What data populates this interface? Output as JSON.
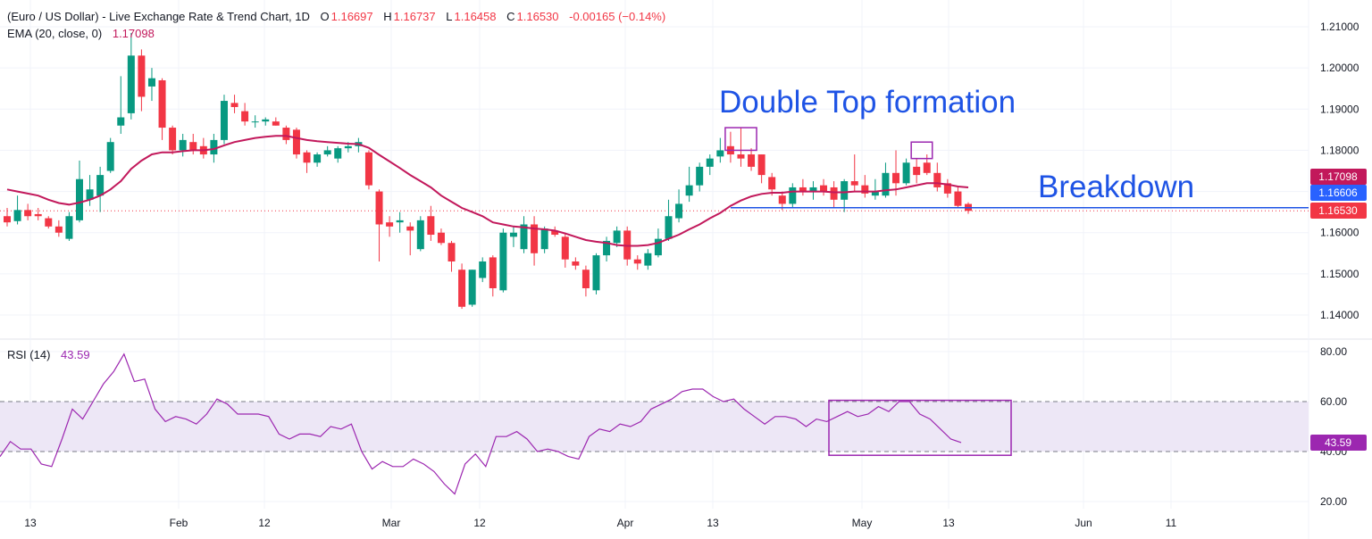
{
  "header": {
    "title": "(Euro / US Dollar) - Live Exchange Rate & Trend Chart, 1D",
    "o_label": "O",
    "o_value": "1.16697",
    "h_label": "H",
    "h_value": "1.16737",
    "l_label": "L",
    "l_value": "1.16458",
    "c_label": "C",
    "c_value": "1.16530",
    "change": "-0.00165 (−0.14%)"
  },
  "ema_legend": {
    "label": "EMA (20, close, 0)",
    "value": "1.17098"
  },
  "rsi_legend": {
    "label": "RSI (14)",
    "value": "43.59"
  },
  "annotations": {
    "double_top": "Double Top formation",
    "breakdown": "Breakdown"
  },
  "price_axis": {
    "ticks": [
      "1.21000",
      "1.20000",
      "1.19000",
      "1.18000",
      "1.17000",
      "1.16000",
      "1.15000",
      "1.14000"
    ],
    "tag_ema": "1.17098",
    "tag_level": "1.16606",
    "tag_close": "1.16530"
  },
  "rsi_axis": {
    "ticks": [
      "80.00",
      "60.00",
      "40.00",
      "20.00"
    ],
    "tag_rsi": "43.59"
  },
  "time_axis": {
    "labels": [
      "13",
      "Feb",
      "12",
      "Mar",
      "12",
      "Apr",
      "13",
      "May",
      "13",
      "Jun",
      "11"
    ]
  },
  "colors": {
    "up": "#089981",
    "down": "#f23645",
    "ema": "#c2185b",
    "rsi": "#9c27b0",
    "breakdown_line": "#1e53e5",
    "box": "#9c27b0",
    "rsi_band": "#ede7f6"
  },
  "chart_data": [
    {
      "type": "candlestick",
      "title": "(Euro / US Dollar) - Live Exchange Rate & Trend Chart, 1D",
      "ylim": [
        1.135,
        1.213
      ],
      "support_level": 1.16606,
      "candles": [
        {
          "o": 1.164,
          "h": 1.166,
          "l": 1.1615,
          "c": 1.1625
        },
        {
          "o": 1.1628,
          "h": 1.169,
          "l": 1.162,
          "c": 1.1655
        },
        {
          "o": 1.1655,
          "h": 1.167,
          "l": 1.163,
          "c": 1.164
        },
        {
          "o": 1.1645,
          "h": 1.166,
          "l": 1.163,
          "c": 1.164
        },
        {
          "o": 1.1635,
          "h": 1.164,
          "l": 1.161,
          "c": 1.1615
        },
        {
          "o": 1.1615,
          "h": 1.163,
          "l": 1.159,
          "c": 1.16
        },
        {
          "o": 1.1585,
          "h": 1.165,
          "l": 1.158,
          "c": 1.164
        },
        {
          "o": 1.163,
          "h": 1.1775,
          "l": 1.1625,
          "c": 1.173
        },
        {
          "o": 1.168,
          "h": 1.174,
          "l": 1.1665,
          "c": 1.1705
        },
        {
          "o": 1.169,
          "h": 1.176,
          "l": 1.165,
          "c": 1.174
        },
        {
          "o": 1.175,
          "h": 1.183,
          "l": 1.1745,
          "c": 1.182
        },
        {
          "o": 1.186,
          "h": 1.198,
          "l": 1.184,
          "c": 1.188
        },
        {
          "o": 1.189,
          "h": 1.2085,
          "l": 1.1875,
          "c": 1.203
        },
        {
          "o": 1.203,
          "h": 1.2045,
          "l": 1.1895,
          "c": 1.193
        },
        {
          "o": 1.1955,
          "h": 1.2,
          "l": 1.192,
          "c": 1.1975
        },
        {
          "o": 1.197,
          "h": 1.1975,
          "l": 1.1825,
          "c": 1.1855
        },
        {
          "o": 1.1855,
          "h": 1.186,
          "l": 1.179,
          "c": 1.18
        },
        {
          "o": 1.18,
          "h": 1.184,
          "l": 1.1785,
          "c": 1.1825
        },
        {
          "o": 1.182,
          "h": 1.184,
          "l": 1.179,
          "c": 1.18
        },
        {
          "o": 1.181,
          "h": 1.183,
          "l": 1.178,
          "c": 1.179
        },
        {
          "o": 1.179,
          "h": 1.184,
          "l": 1.177,
          "c": 1.1825
        },
        {
          "o": 1.1825,
          "h": 1.1935,
          "l": 1.1815,
          "c": 1.192
        },
        {
          "o": 1.1915,
          "h": 1.1935,
          "l": 1.189,
          "c": 1.1905
        },
        {
          "o": 1.1895,
          "h": 1.1915,
          "l": 1.186,
          "c": 1.187
        },
        {
          "o": 1.187,
          "h": 1.1885,
          "l": 1.1855,
          "c": 1.187
        },
        {
          "o": 1.187,
          "h": 1.188,
          "l": 1.186,
          "c": 1.1875
        },
        {
          "o": 1.187,
          "h": 1.188,
          "l": 1.186,
          "c": 1.186
        },
        {
          "o": 1.1855,
          "h": 1.186,
          "l": 1.1815,
          "c": 1.1825
        },
        {
          "o": 1.185,
          "h": 1.1855,
          "l": 1.178,
          "c": 1.179
        },
        {
          "o": 1.1795,
          "h": 1.18,
          "l": 1.1745,
          "c": 1.177
        },
        {
          "o": 1.177,
          "h": 1.1795,
          "l": 1.176,
          "c": 1.179
        },
        {
          "o": 1.179,
          "h": 1.181,
          "l": 1.1785,
          "c": 1.18
        },
        {
          "o": 1.178,
          "h": 1.181,
          "l": 1.177,
          "c": 1.1805
        },
        {
          "o": 1.1805,
          "h": 1.182,
          "l": 1.1795,
          "c": 1.181
        },
        {
          "o": 1.181,
          "h": 1.183,
          "l": 1.1795,
          "c": 1.182
        },
        {
          "o": 1.1795,
          "h": 1.18,
          "l": 1.1705,
          "c": 1.1715
        },
        {
          "o": 1.17,
          "h": 1.1705,
          "l": 1.153,
          "c": 1.162
        },
        {
          "o": 1.1625,
          "h": 1.164,
          "l": 1.159,
          "c": 1.1615
        },
        {
          "o": 1.1625,
          "h": 1.165,
          "l": 1.16,
          "c": 1.163
        },
        {
          "o": 1.1615,
          "h": 1.1625,
          "l": 1.1545,
          "c": 1.1605
        },
        {
          "o": 1.156,
          "h": 1.164,
          "l": 1.1555,
          "c": 1.163
        },
        {
          "o": 1.164,
          "h": 1.1665,
          "l": 1.158,
          "c": 1.1595
        },
        {
          "o": 1.16,
          "h": 1.161,
          "l": 1.157,
          "c": 1.1575
        },
        {
          "o": 1.1575,
          "h": 1.158,
          "l": 1.1505,
          "c": 1.153
        },
        {
          "o": 1.151,
          "h": 1.1525,
          "l": 1.1415,
          "c": 1.142
        },
        {
          "o": 1.1425,
          "h": 1.151,
          "l": 1.142,
          "c": 1.151
        },
        {
          "o": 1.149,
          "h": 1.154,
          "l": 1.148,
          "c": 1.153
        },
        {
          "o": 1.154,
          "h": 1.1545,
          "l": 1.1445,
          "c": 1.1465
        },
        {
          "o": 1.146,
          "h": 1.161,
          "l": 1.1455,
          "c": 1.16
        },
        {
          "o": 1.159,
          "h": 1.1615,
          "l": 1.1565,
          "c": 1.16
        },
        {
          "o": 1.156,
          "h": 1.164,
          "l": 1.155,
          "c": 1.162
        },
        {
          "o": 1.162,
          "h": 1.164,
          "l": 1.152,
          "c": 1.155
        },
        {
          "o": 1.156,
          "h": 1.1615,
          "l": 1.155,
          "c": 1.161
        },
        {
          "o": 1.1605,
          "h": 1.1615,
          "l": 1.159,
          "c": 1.1595
        },
        {
          "o": 1.159,
          "h": 1.16,
          "l": 1.1515,
          "c": 1.1535
        },
        {
          "o": 1.153,
          "h": 1.154,
          "l": 1.151,
          "c": 1.152
        },
        {
          "o": 1.151,
          "h": 1.152,
          "l": 1.1445,
          "c": 1.1465
        },
        {
          "o": 1.146,
          "h": 1.155,
          "l": 1.145,
          "c": 1.1545
        },
        {
          "o": 1.1545,
          "h": 1.159,
          "l": 1.153,
          "c": 1.158
        },
        {
          "o": 1.1575,
          "h": 1.1615,
          "l": 1.1565,
          "c": 1.1605
        },
        {
          "o": 1.1605,
          "h": 1.1615,
          "l": 1.152,
          "c": 1.1535
        },
        {
          "o": 1.1535,
          "h": 1.1545,
          "l": 1.151,
          "c": 1.1525
        },
        {
          "o": 1.152,
          "h": 1.156,
          "l": 1.151,
          "c": 1.155
        },
        {
          "o": 1.1545,
          "h": 1.161,
          "l": 1.154,
          "c": 1.1585
        },
        {
          "o": 1.1585,
          "h": 1.168,
          "l": 1.158,
          "c": 1.164
        },
        {
          "o": 1.1635,
          "h": 1.1705,
          "l": 1.1625,
          "c": 1.167
        },
        {
          "o": 1.169,
          "h": 1.176,
          "l": 1.1675,
          "c": 1.1715
        },
        {
          "o": 1.1715,
          "h": 1.177,
          "l": 1.17,
          "c": 1.176
        },
        {
          "o": 1.176,
          "h": 1.179,
          "l": 1.174,
          "c": 1.178
        },
        {
          "o": 1.1785,
          "h": 1.183,
          "l": 1.177,
          "c": 1.18
        },
        {
          "o": 1.181,
          "h": 1.1845,
          "l": 1.177,
          "c": 1.179
        },
        {
          "o": 1.179,
          "h": 1.1855,
          "l": 1.176,
          "c": 1.178
        },
        {
          "o": 1.179,
          "h": 1.1805,
          "l": 1.175,
          "c": 1.176
        },
        {
          "o": 1.179,
          "h": 1.179,
          "l": 1.172,
          "c": 1.174
        },
        {
          "o": 1.1735,
          "h": 1.1745,
          "l": 1.169,
          "c": 1.1705
        },
        {
          "o": 1.169,
          "h": 1.17,
          "l": 1.1655,
          "c": 1.167
        },
        {
          "o": 1.167,
          "h": 1.172,
          "l": 1.166,
          "c": 1.171
        },
        {
          "o": 1.171,
          "h": 1.173,
          "l": 1.169,
          "c": 1.17
        },
        {
          "o": 1.17,
          "h": 1.1725,
          "l": 1.168,
          "c": 1.171
        },
        {
          "o": 1.1715,
          "h": 1.173,
          "l": 1.169,
          "c": 1.17
        },
        {
          "o": 1.171,
          "h": 1.1725,
          "l": 1.166,
          "c": 1.168
        },
        {
          "o": 1.168,
          "h": 1.173,
          "l": 1.165,
          "c": 1.1725
        },
        {
          "o": 1.1725,
          "h": 1.179,
          "l": 1.17,
          "c": 1.1715
        },
        {
          "o": 1.1715,
          "h": 1.174,
          "l": 1.1685,
          "c": 1.1695
        },
        {
          "o": 1.169,
          "h": 1.173,
          "l": 1.168,
          "c": 1.17
        },
        {
          "o": 1.169,
          "h": 1.177,
          "l": 1.1685,
          "c": 1.1745
        },
        {
          "o": 1.1745,
          "h": 1.18,
          "l": 1.169,
          "c": 1.172
        },
        {
          "o": 1.172,
          "h": 1.178,
          "l": 1.1715,
          "c": 1.177
        },
        {
          "o": 1.176,
          "h": 1.178,
          "l": 1.172,
          "c": 1.174
        },
        {
          "o": 1.177,
          "h": 1.179,
          "l": 1.174,
          "c": 1.1745
        },
        {
          "o": 1.1745,
          "h": 1.177,
          "l": 1.17,
          "c": 1.171
        },
        {
          "o": 1.172,
          "h": 1.173,
          "l": 1.1685,
          "c": 1.1695
        },
        {
          "o": 1.17,
          "h": 1.171,
          "l": 1.166,
          "c": 1.1665
        },
        {
          "o": 1.16697,
          "h": 1.16737,
          "l": 1.16458,
          "c": 1.1653
        }
      ],
      "ema20": [
        1.1705,
        1.17,
        1.1695,
        1.169,
        1.168,
        1.1672,
        1.1668,
        1.1673,
        1.168,
        1.169,
        1.1705,
        1.1725,
        1.1755,
        1.1775,
        1.179,
        1.1795,
        1.1795,
        1.1798,
        1.18,
        1.18,
        1.1803,
        1.1812,
        1.182,
        1.1825,
        1.183,
        1.1833,
        1.1835,
        1.1835,
        1.183,
        1.1825,
        1.1822,
        1.182,
        1.1818,
        1.1816,
        1.1815,
        1.1806,
        1.1789,
        1.1773,
        1.1757,
        1.174,
        1.1725,
        1.171,
        1.169,
        1.1675,
        1.166,
        1.165,
        1.164,
        1.1625,
        1.162,
        1.1615,
        1.1613,
        1.161,
        1.1608,
        1.1605,
        1.1598,
        1.159,
        1.1582,
        1.1578,
        1.1575,
        1.157,
        1.1568,
        1.1568,
        1.157,
        1.1575,
        1.1585,
        1.1595,
        1.1608,
        1.162,
        1.1635,
        1.1648,
        1.1665,
        1.1678,
        1.1688,
        1.1694,
        1.1697,
        1.1697,
        1.17,
        1.17,
        1.17,
        1.17,
        1.1698,
        1.1698,
        1.17,
        1.17,
        1.17,
        1.1703,
        1.1705,
        1.171,
        1.1715,
        1.172,
        1.172,
        1.1717,
        1.1712,
        1.17098
      ],
      "series": [
        {
          "name": "EMA (20, close, 0)",
          "last": 1.17098
        }
      ]
    },
    {
      "type": "line",
      "title": "RSI (14)",
      "ylim": [
        16,
        85
      ],
      "bands": [
        40,
        60
      ],
      "values": [
        38,
        44,
        41,
        41,
        35,
        34,
        45,
        57,
        53,
        60,
        67,
        72,
        79,
        68,
        69,
        57,
        52,
        54,
        53,
        51,
        55,
        61,
        59,
        55,
        55,
        55,
        54,
        47,
        45,
        47,
        47,
        46,
        50,
        49,
        51,
        40,
        33,
        36,
        34,
        34,
        37,
        35,
        32,
        27,
        23,
        35,
        39,
        34,
        46,
        46,
        48,
        45,
        40,
        41,
        40,
        38,
        37,
        46,
        49,
        48,
        51,
        50,
        52,
        57,
        59,
        61,
        64,
        65,
        65,
        62,
        60,
        61,
        57,
        54,
        51,
        54,
        54,
        53,
        50,
        53,
        52,
        54,
        56,
        54,
        55,
        58,
        56,
        60,
        60,
        55,
        53,
        49,
        45,
        43.59
      ]
    }
  ]
}
